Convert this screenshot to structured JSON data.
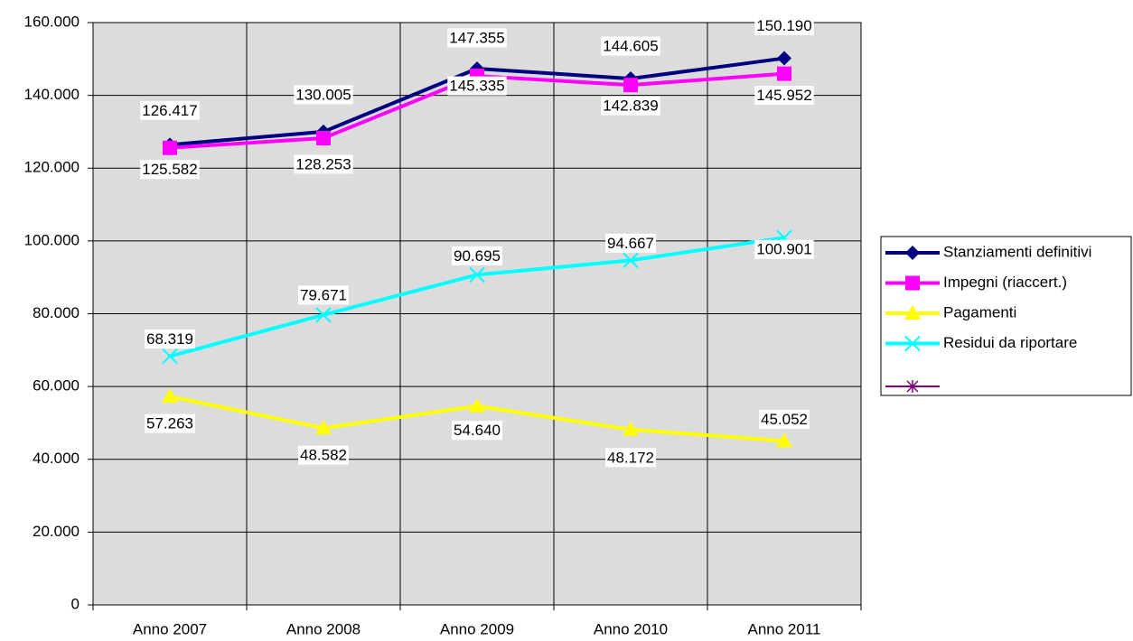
{
  "chart_data": {
    "type": "line",
    "categories": [
      "Anno 2007",
      "Anno 2008",
      "Anno 2009",
      "Anno 2010",
      "Anno 2011"
    ],
    "series": [
      {
        "name": "Stanziamenti definitivi",
        "color": "#000080",
        "values": [
          126417,
          130005,
          147355,
          144605,
          150190
        ],
        "value_labels": [
          "126.417",
          "130.005",
          "147.355",
          "144.605",
          "150.190"
        ]
      },
      {
        "name": "Impegni (riaccert.)",
        "color": "#ff00ff",
        "values": [
          125582,
          128253,
          145335,
          142839,
          145952
        ],
        "value_labels": [
          "125.582",
          "128.253",
          "145.335",
          "142.839",
          "145.952"
        ]
      },
      {
        "name": "Pagamenti",
        "color": "#ffff00",
        "values": [
          57263,
          48582,
          54640,
          48172,
          45052
        ],
        "value_labels": [
          "57.263",
          "48.582",
          "54.640",
          "48.172",
          "45.052"
        ]
      },
      {
        "name": "Residui da riportare",
        "color": "#00ffff",
        "values": [
          68319,
          79671,
          90695,
          94667,
          100901
        ],
        "value_labels": [
          "68.319",
          "79.671",
          "90.695",
          "94.667",
          "100.901"
        ]
      }
    ],
    "ylim": [
      0,
      160000
    ],
    "yticks": [
      0,
      {
        "value": 20000,
        "label": "20.000"
      },
      {
        "value": 40000,
        "label": "40.000"
      },
      {
        "value": 60000,
        "label": "60.000"
      },
      {
        "value": 80000,
        "label": "80.000"
      },
      {
        "value": 100000,
        "label": "100.000"
      },
      {
        "value": 120000,
        "label": "120.000"
      },
      {
        "value": 140000,
        "label": "140.000"
      },
      {
        "value": 160000,
        "label": "160.000"
      }
    ],
    "grid": true,
    "legend": "right"
  }
}
